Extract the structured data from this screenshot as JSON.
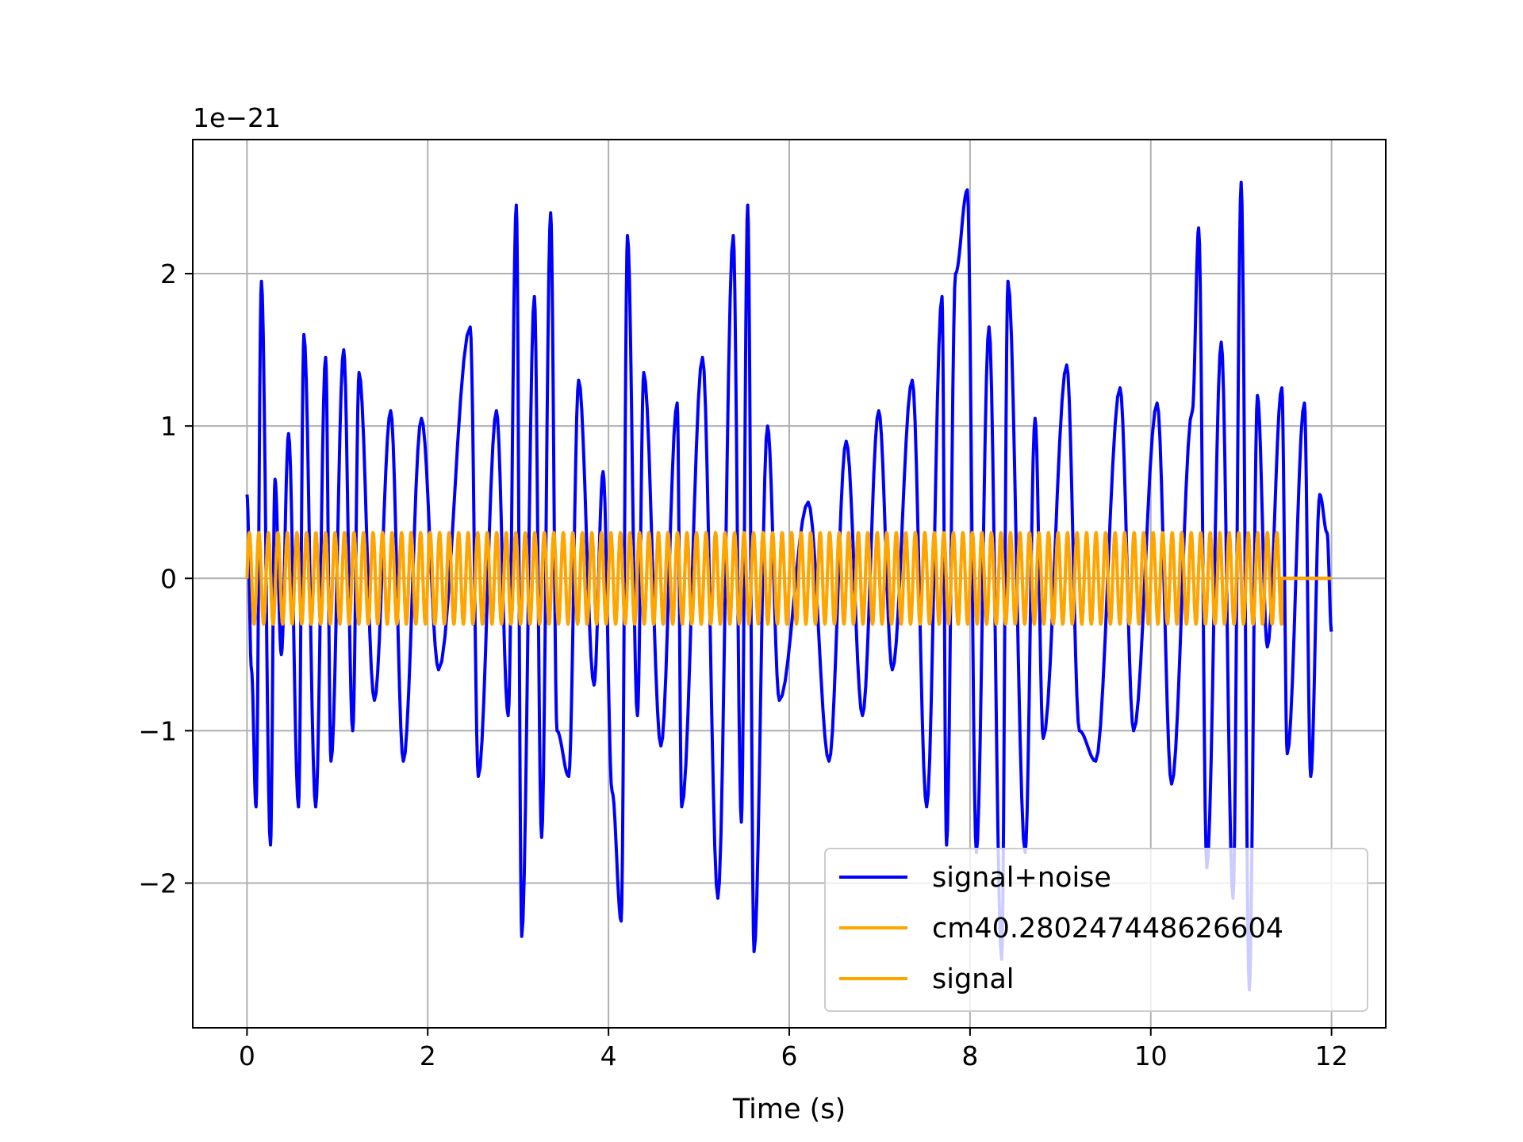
{
  "chart_data": {
    "type": "line",
    "title": "",
    "xlabel": "Time (s)",
    "ylabel": "",
    "y_offset_text": "1e−21",
    "y_scale_factor": 1e-21,
    "xlim": [
      -0.6,
      12.6
    ],
    "ylim": [
      -2.95,
      2.88
    ],
    "x_ticks": [
      0,
      2,
      4,
      6,
      8,
      10,
      12
    ],
    "x_tick_labels": [
      "0",
      "2",
      "4",
      "6",
      "8",
      "10",
      "12"
    ],
    "y_ticks": [
      -2,
      -1,
      0,
      1,
      2
    ],
    "y_tick_labels": [
      "−2",
      "−1",
      "0",
      "1",
      "2"
    ],
    "grid": true,
    "legend_position": "lower-right",
    "series": [
      {
        "name": "signal+noise",
        "color": "#0000ff",
        "extrema": [
          [
            0.0,
            0.55
          ],
          [
            0.05,
            -0.6
          ],
          [
            0.1,
            -1.5
          ],
          [
            0.16,
            1.95
          ],
          [
            0.26,
            -1.75
          ],
          [
            0.31,
            0.65
          ],
          [
            0.38,
            -0.5
          ],
          [
            0.46,
            0.95
          ],
          [
            0.57,
            -1.5
          ],
          [
            0.63,
            1.6
          ],
          [
            0.76,
            -1.5
          ],
          [
            0.87,
            1.45
          ],
          [
            0.93,
            -1.2
          ],
          [
            1.07,
            1.5
          ],
          [
            1.17,
            -1.0
          ],
          [
            1.24,
            1.35
          ],
          [
            1.41,
            -0.8
          ],
          [
            1.59,
            1.1
          ],
          [
            1.73,
            -1.2
          ],
          [
            1.93,
            1.05
          ],
          [
            2.12,
            -0.6
          ],
          [
            2.47,
            1.65
          ],
          [
            2.56,
            -1.3
          ],
          [
            2.76,
            1.1
          ],
          [
            2.89,
            -0.9
          ],
          [
            2.98,
            2.45
          ],
          [
            3.04,
            -2.35
          ],
          [
            3.18,
            1.85
          ],
          [
            3.26,
            -1.7
          ],
          [
            3.36,
            2.4
          ],
          [
            3.43,
            -1.0
          ],
          [
            3.56,
            -1.3
          ],
          [
            3.67,
            1.3
          ],
          [
            3.84,
            -0.7
          ],
          [
            3.94,
            0.7
          ],
          [
            4.04,
            -1.4
          ],
          [
            4.14,
            -2.25
          ],
          [
            4.21,
            2.25
          ],
          [
            4.32,
            -0.9
          ],
          [
            4.39,
            1.35
          ],
          [
            4.58,
            -1.1
          ],
          [
            4.76,
            1.15
          ],
          [
            4.81,
            -1.5
          ],
          [
            5.04,
            1.45
          ],
          [
            5.21,
            -2.1
          ],
          [
            5.38,
            2.25
          ],
          [
            5.47,
            -1.6
          ],
          [
            5.54,
            2.45
          ],
          [
            5.61,
            -2.45
          ],
          [
            5.76,
            1.0
          ],
          [
            5.89,
            -0.8
          ],
          [
            6.21,
            0.5
          ],
          [
            6.44,
            -1.2
          ],
          [
            6.63,
            0.9
          ],
          [
            6.81,
            -0.9
          ],
          [
            6.99,
            1.1
          ],
          [
            7.14,
            -0.6
          ],
          [
            7.36,
            1.3
          ],
          [
            7.52,
            -1.5
          ],
          [
            7.69,
            1.85
          ],
          [
            7.74,
            -1.75
          ],
          [
            7.84,
            2.0
          ],
          [
            7.97,
            2.55
          ],
          [
            8.07,
            -1.8
          ],
          [
            8.21,
            1.65
          ],
          [
            8.35,
            -2.5
          ],
          [
            8.42,
            1.95
          ],
          [
            8.61,
            -1.8
          ],
          [
            8.72,
            1.05
          ],
          [
            8.81,
            -1.05
          ],
          [
            9.07,
            1.4
          ],
          [
            9.21,
            -1.0
          ],
          [
            9.39,
            -1.2
          ],
          [
            9.66,
            1.25
          ],
          [
            9.81,
            -1.0
          ],
          [
            10.07,
            1.15
          ],
          [
            10.23,
            -1.35
          ],
          [
            10.46,
            1.1
          ],
          [
            10.53,
            2.3
          ],
          [
            10.62,
            -1.9
          ],
          [
            10.78,
            1.55
          ],
          [
            10.91,
            -2.1
          ],
          [
            11.0,
            2.6
          ],
          [
            11.09,
            -2.7
          ],
          [
            11.18,
            1.2
          ],
          [
            11.29,
            -0.45
          ],
          [
            11.45,
            1.25
          ],
          [
            11.51,
            -1.15
          ],
          [
            11.7,
            1.15
          ],
          [
            11.77,
            -1.3
          ],
          [
            11.87,
            0.55
          ],
          [
            11.95,
            0.3
          ],
          [
            12.0,
            -0.35
          ]
        ]
      },
      {
        "name": "cm40.280247448626604",
        "color": "#ffa500",
        "amplitude": 0.3,
        "frequency_hz": 9.5,
        "t_start": 0.0,
        "t_end": 11.45,
        "flat_until": 12.0
      },
      {
        "name": "signal",
        "color": "#ffa500",
        "amplitude": 0.3,
        "frequency_hz": 9.5,
        "t_start": 0.0,
        "t_end": 11.45,
        "flat_until": 12.0
      }
    ]
  }
}
